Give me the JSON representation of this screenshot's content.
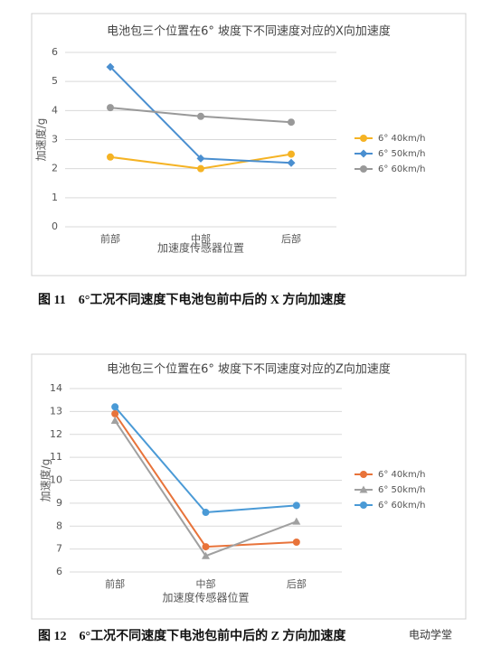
{
  "chart_data": [
    {
      "type": "line",
      "title": "电池包三个位置在6° 坡度下不同速度对应的X向加速度",
      "x_label": "加速度传感器位置",
      "y_label": "加速度/g",
      "categories": [
        "前部",
        "中部",
        "后部"
      ],
      "ylim": [
        0,
        6
      ],
      "yticks": [
        0,
        1,
        2,
        3,
        4,
        5,
        6
      ],
      "grid": true,
      "legend": "right",
      "series": [
        {
          "name": "6° 40km/h",
          "color": "#f5b324",
          "marker": "circle",
          "values": [
            2.4,
            2.0,
            2.5
          ]
        },
        {
          "name": "6° 50km/h",
          "color": "#4a8fd0",
          "marker": "diamond",
          "values": [
            5.5,
            2.35,
            2.2
          ]
        },
        {
          "name": "6° 60km/h",
          "color": "#999999",
          "marker": "circle",
          "values": [
            4.1,
            3.8,
            3.6
          ]
        }
      ],
      "caption": "图 11　6°工况不同速度下电池包前中后的 X 方向加速度"
    },
    {
      "type": "line",
      "title": "电池包三个位置在6° 坡度下不同速度对应的Z向加速度",
      "x_label": "加速度传感器位置",
      "y_label": "加速度/g",
      "categories": [
        "前部",
        "中部",
        "后部"
      ],
      "ylim": [
        6,
        14
      ],
      "yticks": [
        6,
        7,
        8,
        9,
        10,
        11,
        12,
        13,
        14
      ],
      "grid": true,
      "legend": "right",
      "series": [
        {
          "name": "6° 40km/h",
          "color": "#e8733a",
          "marker": "circle",
          "values": [
            12.9,
            7.1,
            7.3
          ]
        },
        {
          "name": "6° 50km/h",
          "color": "#a0a0a0",
          "marker": "triangle",
          "values": [
            12.6,
            6.7,
            8.2
          ]
        },
        {
          "name": "6° 60km/h",
          "color": "#4a9ad6",
          "marker": "circle",
          "values": [
            13.2,
            8.6,
            8.9
          ]
        }
      ],
      "caption": "图 12　6°工况不同速度下电池包前中后的 Z 方向加速度"
    }
  ],
  "watermark": "电动学堂"
}
